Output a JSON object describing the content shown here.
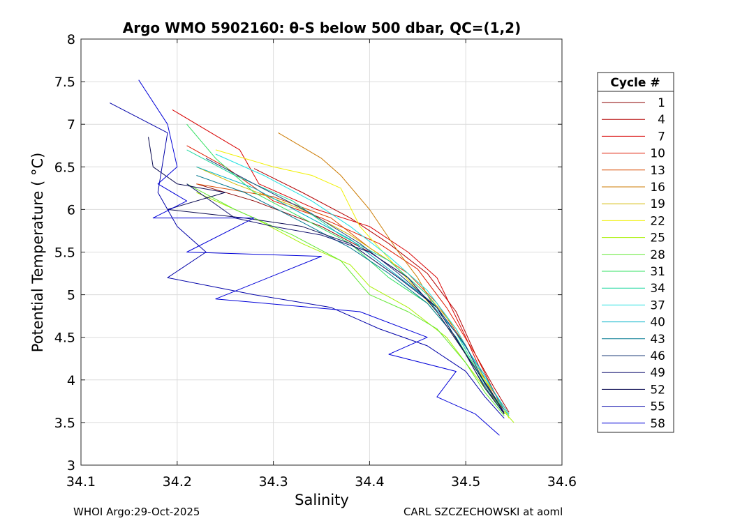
{
  "chart_data": {
    "type": "line",
    "title": "Argo WMO 5902160: θ-S below 500 dbar,  QC=(1,2)",
    "xlabel": "Salinity",
    "ylabel": "Potential Temperature ( °C)",
    "xlim": [
      34.1,
      34.6
    ],
    "ylim": [
      3,
      8
    ],
    "xticks": [
      "34.1",
      "34.2",
      "34.3",
      "34.4",
      "34.5",
      "34.6"
    ],
    "yticks": [
      "3",
      "3.5",
      "4",
      "4.5",
      "5",
      "5.5",
      "6",
      "6.5",
      "7",
      "7.5",
      "8"
    ],
    "grid": true,
    "legend": {
      "title": "Cycle #",
      "placement": "right",
      "entries": [
        {
          "label": "1",
          "color": "#8b0000"
        },
        {
          "label": "4",
          "color": "#b40000"
        },
        {
          "label": "7",
          "color": "#d80000"
        },
        {
          "label": "10",
          "color": "#e01a00"
        },
        {
          "label": "13",
          "color": "#d84a00"
        },
        {
          "label": "16",
          "color": "#cc7a00"
        },
        {
          "label": "19",
          "color": "#d4b800"
        },
        {
          "label": "22",
          "color": "#f0f000"
        },
        {
          "label": "25",
          "color": "#a8f000"
        },
        {
          "label": "28",
          "color": "#60e830"
        },
        {
          "label": "31",
          "color": "#30e060"
        },
        {
          "label": "34",
          "color": "#20d8a0"
        },
        {
          "label": "37",
          "color": "#20e0e0"
        },
        {
          "label": "40",
          "color": "#00b0c8"
        },
        {
          "label": "43",
          "color": "#007890"
        },
        {
          "label": "46",
          "color": "#1e3c78"
        },
        {
          "label": "49",
          "color": "#141470"
        },
        {
          "label": "52",
          "color": "#0a0a50"
        },
        {
          "label": "55",
          "color": "#0000a8"
        },
        {
          "label": "58",
          "color": "#0000d8"
        }
      ]
    },
    "series": [
      {
        "name": "1",
        "color": "#8b0000",
        "points": [
          [
            34.22,
            6.3
          ],
          [
            34.28,
            6.1
          ],
          [
            34.35,
            5.8
          ],
          [
            34.4,
            5.5
          ],
          [
            34.44,
            5.2
          ],
          [
            34.47,
            4.8
          ],
          [
            34.5,
            4.3
          ],
          [
            34.52,
            3.9
          ],
          [
            34.54,
            3.65
          ]
        ]
      },
      {
        "name": "4",
        "color": "#b40000",
        "points": [
          [
            34.28,
            6.48
          ],
          [
            34.33,
            6.2
          ],
          [
            34.38,
            5.9
          ],
          [
            34.42,
            5.6
          ],
          [
            34.46,
            5.25
          ],
          [
            34.49,
            4.8
          ],
          [
            34.51,
            4.3
          ],
          [
            34.53,
            3.9
          ],
          [
            34.545,
            3.62
          ]
        ]
      },
      {
        "name": "7",
        "color": "#d80000",
        "points": [
          [
            34.195,
            7.17
          ],
          [
            34.265,
            6.7
          ],
          [
            34.285,
            6.3
          ],
          [
            34.345,
            6.0
          ],
          [
            34.4,
            5.8
          ],
          [
            34.44,
            5.5
          ],
          [
            34.47,
            5.2
          ],
          [
            34.5,
            4.5
          ],
          [
            34.52,
            4.0
          ],
          [
            34.545,
            3.6
          ]
        ]
      },
      {
        "name": "10",
        "color": "#e01a00",
        "points": [
          [
            34.21,
            6.75
          ],
          [
            34.25,
            6.5
          ],
          [
            34.3,
            6.1
          ],
          [
            34.35,
            5.9
          ],
          [
            34.41,
            5.6
          ],
          [
            34.45,
            5.3
          ],
          [
            34.48,
            4.85
          ],
          [
            34.51,
            4.3
          ],
          [
            34.53,
            3.85
          ],
          [
            34.54,
            3.6
          ]
        ]
      },
      {
        "name": "13",
        "color": "#d84a00",
        "points": [
          [
            34.22,
            6.3
          ],
          [
            34.3,
            6.15
          ],
          [
            34.36,
            5.9
          ],
          [
            34.4,
            5.55
          ],
          [
            34.44,
            5.25
          ],
          [
            34.47,
            4.9
          ],
          [
            34.5,
            4.4
          ],
          [
            34.52,
            3.95
          ],
          [
            34.54,
            3.62
          ]
        ]
      },
      {
        "name": "16",
        "color": "#cc7a00",
        "points": [
          [
            34.305,
            6.9
          ],
          [
            34.35,
            6.6
          ],
          [
            34.37,
            6.4
          ],
          [
            34.4,
            6.0
          ],
          [
            34.43,
            5.5
          ],
          [
            34.45,
            5.2
          ],
          [
            34.47,
            4.8
          ],
          [
            34.5,
            4.3
          ],
          [
            34.52,
            3.9
          ],
          [
            34.54,
            3.62
          ]
        ]
      },
      {
        "name": "19",
        "color": "#d4b800",
        "points": [
          [
            34.22,
            6.5
          ],
          [
            34.26,
            6.3
          ],
          [
            34.33,
            6.0
          ],
          [
            34.38,
            5.7
          ],
          [
            34.42,
            5.4
          ],
          [
            34.46,
            5.0
          ],
          [
            34.49,
            4.6
          ],
          [
            34.51,
            4.2
          ],
          [
            34.53,
            3.8
          ],
          [
            34.545,
            3.58
          ]
        ]
      },
      {
        "name": "22",
        "color": "#f0f000",
        "points": [
          [
            34.24,
            6.7
          ],
          [
            34.3,
            6.5
          ],
          [
            34.34,
            6.4
          ],
          [
            34.37,
            6.25
          ],
          [
            34.39,
            5.8
          ],
          [
            34.43,
            5.3
          ],
          [
            34.47,
            4.8
          ],
          [
            34.5,
            4.3
          ],
          [
            34.53,
            3.85
          ],
          [
            34.545,
            3.55
          ]
        ]
      },
      {
        "name": "25",
        "color": "#a8f000",
        "points": [
          [
            34.22,
            6.2
          ],
          [
            34.28,
            5.9
          ],
          [
            34.33,
            5.6
          ],
          [
            34.38,
            5.35
          ],
          [
            34.4,
            5.1
          ],
          [
            34.44,
            4.85
          ],
          [
            34.48,
            4.5
          ],
          [
            34.51,
            4.05
          ],
          [
            34.53,
            3.75
          ],
          [
            34.55,
            3.5
          ]
        ]
      },
      {
        "name": "28",
        "color": "#60e830",
        "points": [
          [
            34.21,
            6.3
          ],
          [
            34.26,
            6.0
          ],
          [
            34.32,
            5.7
          ],
          [
            34.37,
            5.4
          ],
          [
            34.4,
            5.0
          ],
          [
            34.44,
            4.8
          ],
          [
            34.47,
            4.6
          ],
          [
            34.5,
            4.2
          ],
          [
            34.52,
            3.85
          ],
          [
            34.54,
            3.58
          ]
        ]
      },
      {
        "name": "31",
        "color": "#30e060",
        "points": [
          [
            34.21,
            7.0
          ],
          [
            34.24,
            6.6
          ],
          [
            34.28,
            6.2
          ],
          [
            34.33,
            5.9
          ],
          [
            34.38,
            5.6
          ],
          [
            34.42,
            5.2
          ],
          [
            34.46,
            4.9
          ],
          [
            34.49,
            4.5
          ],
          [
            34.52,
            3.95
          ],
          [
            34.54,
            3.6
          ]
        ]
      },
      {
        "name": "34",
        "color": "#20d8a0",
        "points": [
          [
            34.21,
            6.7
          ],
          [
            34.26,
            6.4
          ],
          [
            34.32,
            6.1
          ],
          [
            34.37,
            5.7
          ],
          [
            34.42,
            5.4
          ],
          [
            34.46,
            5.0
          ],
          [
            34.49,
            4.55
          ],
          [
            34.51,
            4.15
          ],
          [
            34.53,
            3.8
          ],
          [
            34.545,
            3.58
          ]
        ]
      },
      {
        "name": "37",
        "color": "#20e0e0",
        "points": [
          [
            34.24,
            6.65
          ],
          [
            34.29,
            6.4
          ],
          [
            34.34,
            6.1
          ],
          [
            34.38,
            5.8
          ],
          [
            34.42,
            5.45
          ],
          [
            34.46,
            5.05
          ],
          [
            34.49,
            4.6
          ],
          [
            34.51,
            4.2
          ],
          [
            34.53,
            3.85
          ],
          [
            34.545,
            3.6
          ]
        ]
      },
      {
        "name": "40",
        "color": "#00b0c8",
        "points": [
          [
            34.22,
            6.5
          ],
          [
            34.28,
            6.25
          ],
          [
            34.33,
            5.95
          ],
          [
            34.38,
            5.65
          ],
          [
            34.42,
            5.3
          ],
          [
            34.46,
            4.95
          ],
          [
            34.49,
            4.55
          ],
          [
            34.52,
            4.05
          ],
          [
            34.54,
            3.65
          ]
        ]
      },
      {
        "name": "43",
        "color": "#007890",
        "points": [
          [
            34.22,
            6.4
          ],
          [
            34.27,
            6.2
          ],
          [
            34.33,
            5.85
          ],
          [
            34.38,
            5.55
          ],
          [
            34.42,
            5.25
          ],
          [
            34.46,
            4.9
          ],
          [
            34.49,
            4.5
          ],
          [
            34.51,
            4.1
          ],
          [
            34.53,
            3.75
          ],
          [
            34.54,
            3.6
          ]
        ]
      },
      {
        "name": "46",
        "color": "#1e3c78",
        "points": [
          [
            34.23,
            6.6
          ],
          [
            34.28,
            6.3
          ],
          [
            34.34,
            5.95
          ],
          [
            34.39,
            5.6
          ],
          [
            34.43,
            5.25
          ],
          [
            34.47,
            4.85
          ],
          [
            34.5,
            4.4
          ],
          [
            34.52,
            3.95
          ],
          [
            34.54,
            3.62
          ]
        ]
      },
      {
        "name": "49",
        "color": "#141470",
        "points": [
          [
            34.21,
            6.3
          ],
          [
            34.26,
            5.9
          ],
          [
            34.3,
            5.8
          ],
          [
            34.35,
            5.7
          ],
          [
            34.4,
            5.5
          ],
          [
            34.44,
            5.2
          ],
          [
            34.47,
            4.8
          ],
          [
            34.5,
            4.3
          ],
          [
            34.52,
            3.9
          ],
          [
            34.54,
            3.6
          ]
        ]
      },
      {
        "name": "52",
        "color": "#0a0a50",
        "points": [
          [
            34.17,
            6.85
          ],
          [
            34.175,
            6.5
          ],
          [
            34.2,
            6.3
          ],
          [
            34.25,
            6.2
          ],
          [
            34.19,
            6.0
          ],
          [
            34.27,
            5.9
          ],
          [
            34.33,
            5.8
          ],
          [
            34.38,
            5.6
          ],
          [
            34.43,
            5.2
          ],
          [
            34.47,
            4.85
          ],
          [
            34.5,
            4.3
          ],
          [
            34.53,
            3.8
          ],
          [
            34.54,
            3.6
          ]
        ]
      },
      {
        "name": "55",
        "color": "#0000a8",
        "points": [
          [
            34.13,
            7.25
          ],
          [
            34.19,
            6.9
          ],
          [
            34.18,
            6.2
          ],
          [
            34.2,
            5.8
          ],
          [
            34.23,
            5.5
          ],
          [
            34.19,
            5.2
          ],
          [
            34.28,
            5.0
          ],
          [
            34.36,
            4.85
          ],
          [
            34.41,
            4.6
          ],
          [
            34.46,
            4.4
          ],
          [
            34.5,
            4.1
          ],
          [
            34.52,
            3.8
          ],
          [
            34.54,
            3.55
          ]
        ]
      },
      {
        "name": "58",
        "color": "#0000d8",
        "points": [
          [
            34.16,
            7.52
          ],
          [
            34.19,
            7.0
          ],
          [
            34.2,
            6.5
          ],
          [
            34.18,
            6.3
          ],
          [
            34.21,
            6.1
          ],
          [
            34.175,
            5.9
          ],
          [
            34.28,
            5.9
          ],
          [
            34.21,
            5.5
          ],
          [
            34.35,
            5.45
          ],
          [
            34.24,
            4.95
          ],
          [
            34.39,
            4.8
          ],
          [
            34.46,
            4.5
          ],
          [
            34.42,
            4.3
          ],
          [
            34.49,
            4.1
          ],
          [
            34.47,
            3.8
          ],
          [
            34.51,
            3.6
          ],
          [
            34.535,
            3.35
          ]
        ]
      }
    ]
  },
  "footer": {
    "left": "WHOI Argo:29-Oct-2025",
    "right": "CARL SZCZECHOWSKI at aoml"
  }
}
